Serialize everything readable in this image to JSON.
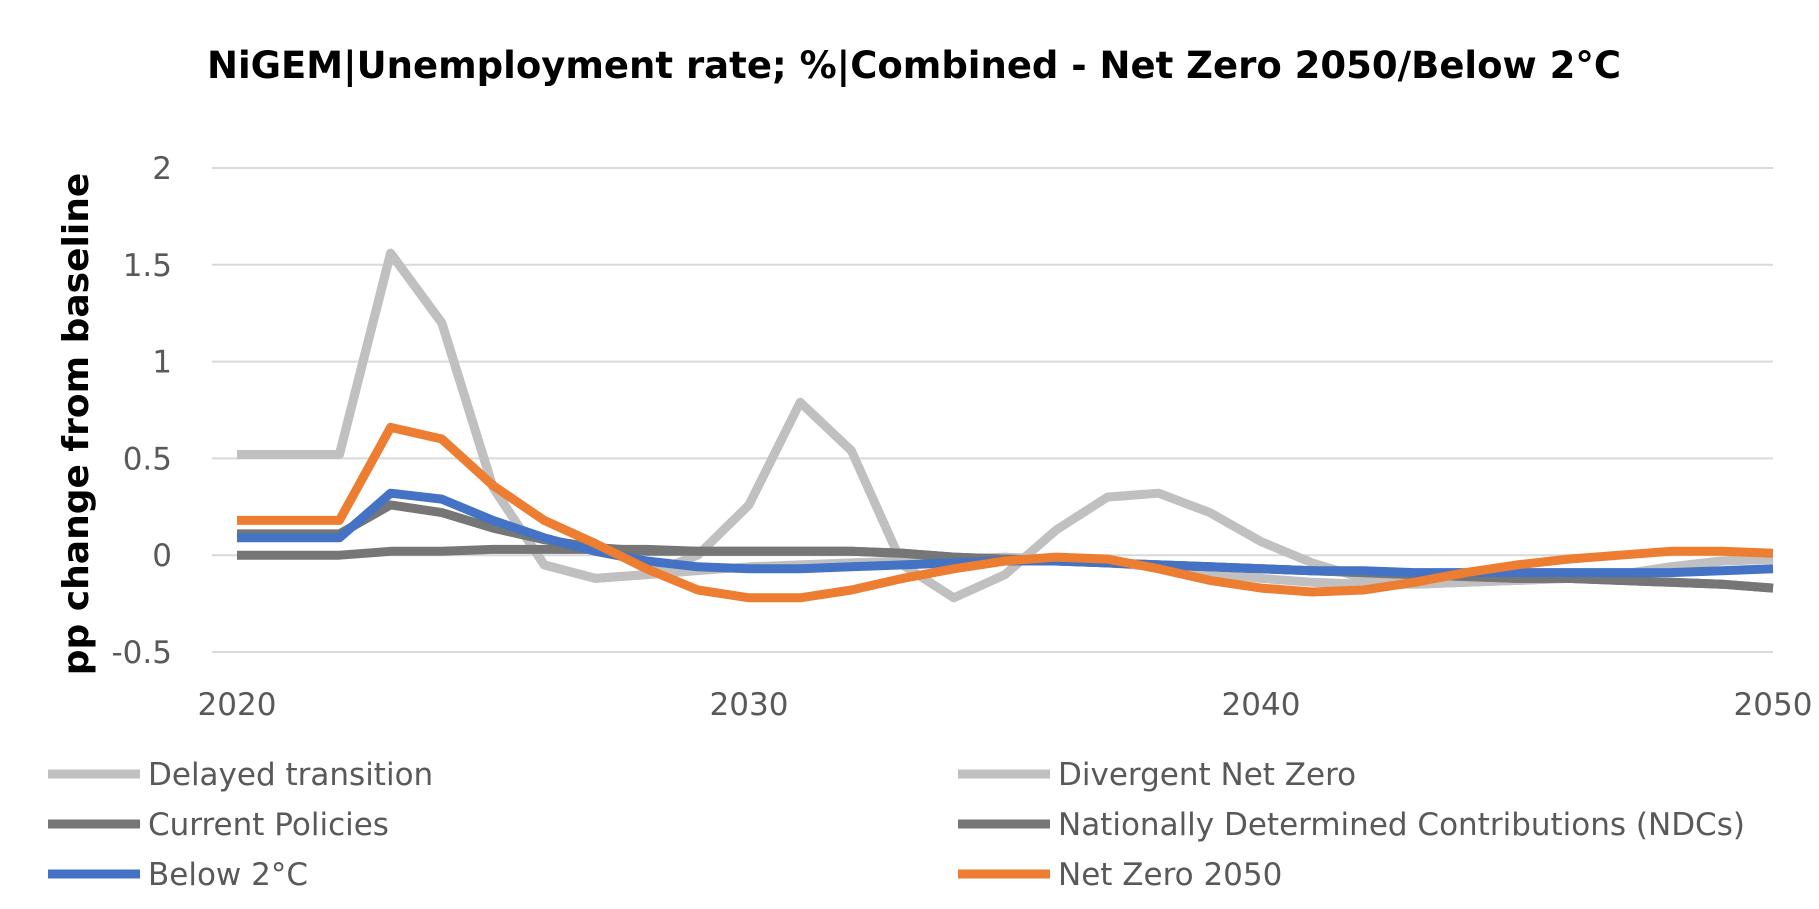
{
  "chart_data": {
    "type": "line",
    "title": "NiGEM|Unemployment rate; %|Combined - Net Zero 2050/Below 2°C",
    "xlabel": "",
    "ylabel": "pp change from baseline",
    "xlim": [
      2020,
      2050
    ],
    "ylim": [
      -0.5,
      2
    ],
    "x_ticks": [
      "2020",
      "2030",
      "2040",
      "2050"
    ],
    "y_ticks": [
      "2",
      "1.5",
      "1",
      "0.5",
      "0",
      "-0.5"
    ],
    "grid": "horizontal",
    "legend_position": "bottom",
    "x": [
      2020,
      2021,
      2022,
      2023,
      2024,
      2025,
      2026,
      2027,
      2028,
      2029,
      2030,
      2031,
      2032,
      2033,
      2034,
      2035,
      2036,
      2037,
      2038,
      2039,
      2040,
      2041,
      2042,
      2043,
      2044,
      2045,
      2046,
      2047,
      2048,
      2049,
      2050
    ],
    "series": [
      {
        "name": "Delayed transition",
        "color": "#c0c0c0",
        "values": [
          0.52,
          0.52,
          0.52,
          1.56,
          1.2,
          0.35,
          -0.05,
          -0.12,
          -0.1,
          -0.08,
          -0.06,
          -0.05,
          -0.04,
          -0.03,
          -0.02,
          -0.01,
          -0.02,
          -0.04,
          -0.06,
          -0.09,
          -0.12,
          -0.14,
          -0.15,
          -0.15,
          -0.14,
          -0.13,
          -0.12,
          -0.1,
          -0.06,
          -0.03,
          -0.02
        ]
      },
      {
        "name": "Divergent Net Zero",
        "color": "#c0c0c0",
        "values": [
          0.52,
          0.52,
          0.52,
          1.56,
          1.2,
          0.35,
          -0.05,
          -0.12,
          -0.1,
          0.0,
          0.26,
          0.79,
          0.54,
          -0.05,
          -0.22,
          -0.1,
          0.13,
          0.3,
          0.32,
          0.22,
          0.07,
          -0.04,
          -0.12,
          -0.15,
          -0.14,
          -0.13,
          -0.12,
          -0.1,
          -0.06,
          -0.03,
          -0.02
        ]
      },
      {
        "name": "Current Policies",
        "color": "#767676",
        "values": [
          0.0,
          0.0,
          0.0,
          0.02,
          0.02,
          0.03,
          0.03,
          0.03,
          0.03,
          0.02,
          0.02,
          0.02,
          0.02,
          0.01,
          -0.01,
          -0.02,
          -0.03,
          -0.04,
          -0.05,
          -0.06,
          -0.07,
          -0.08,
          -0.09,
          -0.1,
          -0.11,
          -0.12,
          -0.12,
          -0.13,
          -0.14,
          -0.15,
          -0.17
        ]
      },
      {
        "name": "Nationally Determined Contributions (NDCs)",
        "color": "#767676",
        "values": [
          0.11,
          0.11,
          0.11,
          0.26,
          0.22,
          0.14,
          0.08,
          0.04,
          0.02,
          0.02,
          0.02,
          0.02,
          0.02,
          0.01,
          -0.01,
          -0.02,
          -0.03,
          -0.04,
          -0.05,
          -0.06,
          -0.07,
          -0.08,
          -0.09,
          -0.1,
          -0.11,
          -0.12,
          -0.12,
          -0.13,
          -0.14,
          -0.15,
          -0.17
        ]
      },
      {
        "name": "Below 2°C",
        "color": "#4472c4",
        "values": [
          0.09,
          0.09,
          0.09,
          0.32,
          0.29,
          0.18,
          0.09,
          0.02,
          -0.03,
          -0.06,
          -0.07,
          -0.07,
          -0.06,
          -0.05,
          -0.04,
          -0.03,
          -0.03,
          -0.04,
          -0.05,
          -0.06,
          -0.07,
          -0.08,
          -0.08,
          -0.09,
          -0.09,
          -0.09,
          -0.09,
          -0.09,
          -0.09,
          -0.08,
          -0.07
        ]
      },
      {
        "name": "Net Zero 2050",
        "color": "#ed7d31",
        "values": [
          0.18,
          0.18,
          0.18,
          0.66,
          0.6,
          0.36,
          0.18,
          0.06,
          -0.07,
          -0.18,
          -0.22,
          -0.22,
          -0.18,
          -0.12,
          -0.07,
          -0.03,
          -0.01,
          -0.02,
          -0.07,
          -0.13,
          -0.17,
          -0.19,
          -0.18,
          -0.14,
          -0.09,
          -0.05,
          -0.02,
          0.0,
          0.02,
          0.02,
          0.01
        ]
      }
    ],
    "legend_order": [
      0,
      1,
      2,
      3,
      4,
      5
    ]
  }
}
